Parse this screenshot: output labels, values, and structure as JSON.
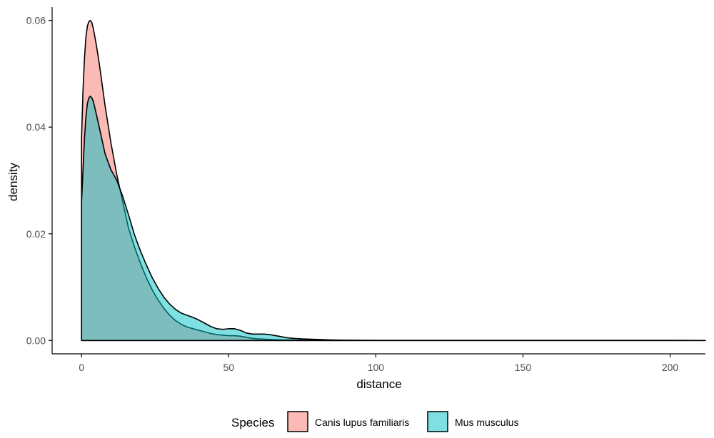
{
  "chart_data": {
    "type": "area",
    "subtype": "density",
    "xlabel": "distance",
    "ylabel": "density",
    "xlim": [
      -10,
      212
    ],
    "ylim": [
      -0.0025,
      0.0625
    ],
    "x_ticks": [
      0,
      50,
      100,
      150,
      200
    ],
    "x_tick_labels": [
      "0",
      "50",
      "100",
      "150",
      "200"
    ],
    "y_ticks": [
      0,
      0.02,
      0.04,
      0.06
    ],
    "y_tick_labels": [
      "0.00",
      "0.02",
      "0.04",
      "0.06"
    ],
    "grid": false,
    "legend": {
      "title": "Species",
      "position": "bottom"
    },
    "series": [
      {
        "name": "Canis lupus familiaris",
        "fill": "#F8766D",
        "x": [
          0,
          0.5,
          1,
          1.5,
          2,
          2.5,
          3,
          3.5,
          4,
          5,
          6,
          7,
          8,
          10,
          12,
          14,
          16,
          18,
          20,
          22,
          24,
          26,
          28,
          30,
          32,
          34,
          36,
          38,
          40,
          42,
          44,
          46,
          48,
          50,
          52,
          54,
          56,
          58,
          60,
          62,
          64,
          66,
          68,
          70,
          72,
          75,
          80,
          85,
          90,
          95,
          100,
          110,
          120,
          130,
          140,
          150,
          160,
          170,
          180,
          190,
          200,
          212
        ],
        "y": [
          0.038,
          0.047,
          0.053,
          0.057,
          0.059,
          0.0598,
          0.06,
          0.0596,
          0.0585,
          0.0555,
          0.052,
          0.048,
          0.044,
          0.037,
          0.031,
          0.026,
          0.021,
          0.0175,
          0.0145,
          0.0118,
          0.0095,
          0.0076,
          0.006,
          0.0047,
          0.0037,
          0.003,
          0.0025,
          0.0022,
          0.0019,
          0.0016,
          0.0013,
          0.0011,
          0.001,
          0.0009,
          0.0009,
          0.0008,
          0.0006,
          0.0004,
          0.0003,
          0.00025,
          0.0002,
          0.00015,
          0.0001,
          0.0001,
          0.0001,
          0.0001,
          8e-05,
          5e-05,
          3e-05,
          2e-05,
          1e-05,
          1e-05,
          1e-05,
          1e-05,
          1e-05,
          1e-05,
          1e-05,
          1e-05,
          1e-05,
          1e-05,
          1e-05,
          0
        ]
      },
      {
        "name": "Mus musculus",
        "fill": "#00BFC4",
        "x": [
          0,
          0.5,
          1,
          1.5,
          2,
          2.5,
          3,
          3.5,
          4,
          5,
          6,
          7,
          8,
          10,
          12,
          14,
          16,
          18,
          20,
          22,
          24,
          26,
          28,
          30,
          32,
          34,
          36,
          38,
          40,
          42,
          44,
          46,
          48,
          50,
          52,
          54,
          56,
          58,
          60,
          62,
          64,
          66,
          68,
          70,
          72,
          75,
          80,
          85,
          90,
          95,
          100,
          110,
          120,
          130,
          140,
          150,
          160,
          170,
          180,
          190,
          200,
          212
        ],
        "y": [
          0.026,
          0.032,
          0.038,
          0.042,
          0.0445,
          0.0455,
          0.0458,
          0.0455,
          0.0448,
          0.0425,
          0.04,
          0.0375,
          0.035,
          0.032,
          0.03,
          0.027,
          0.0235,
          0.0198,
          0.0168,
          0.0142,
          0.0118,
          0.0098,
          0.0081,
          0.0068,
          0.0058,
          0.0051,
          0.0047,
          0.0043,
          0.0038,
          0.0032,
          0.0026,
          0.0022,
          0.0021,
          0.0022,
          0.0022,
          0.0019,
          0.0014,
          0.0012,
          0.0012,
          0.0012,
          0.0011,
          0.0009,
          0.0007,
          0.0005,
          0.0004,
          0.0003,
          0.0002,
          0.0001,
          5e-05,
          3e-05,
          2e-05,
          1e-05,
          1e-05,
          1e-05,
          1e-05,
          1e-05,
          1e-05,
          1e-05,
          1e-05,
          1e-05,
          1e-05,
          0
        ]
      }
    ],
    "fill_opacity": 0.5,
    "line_color": "#000000"
  }
}
